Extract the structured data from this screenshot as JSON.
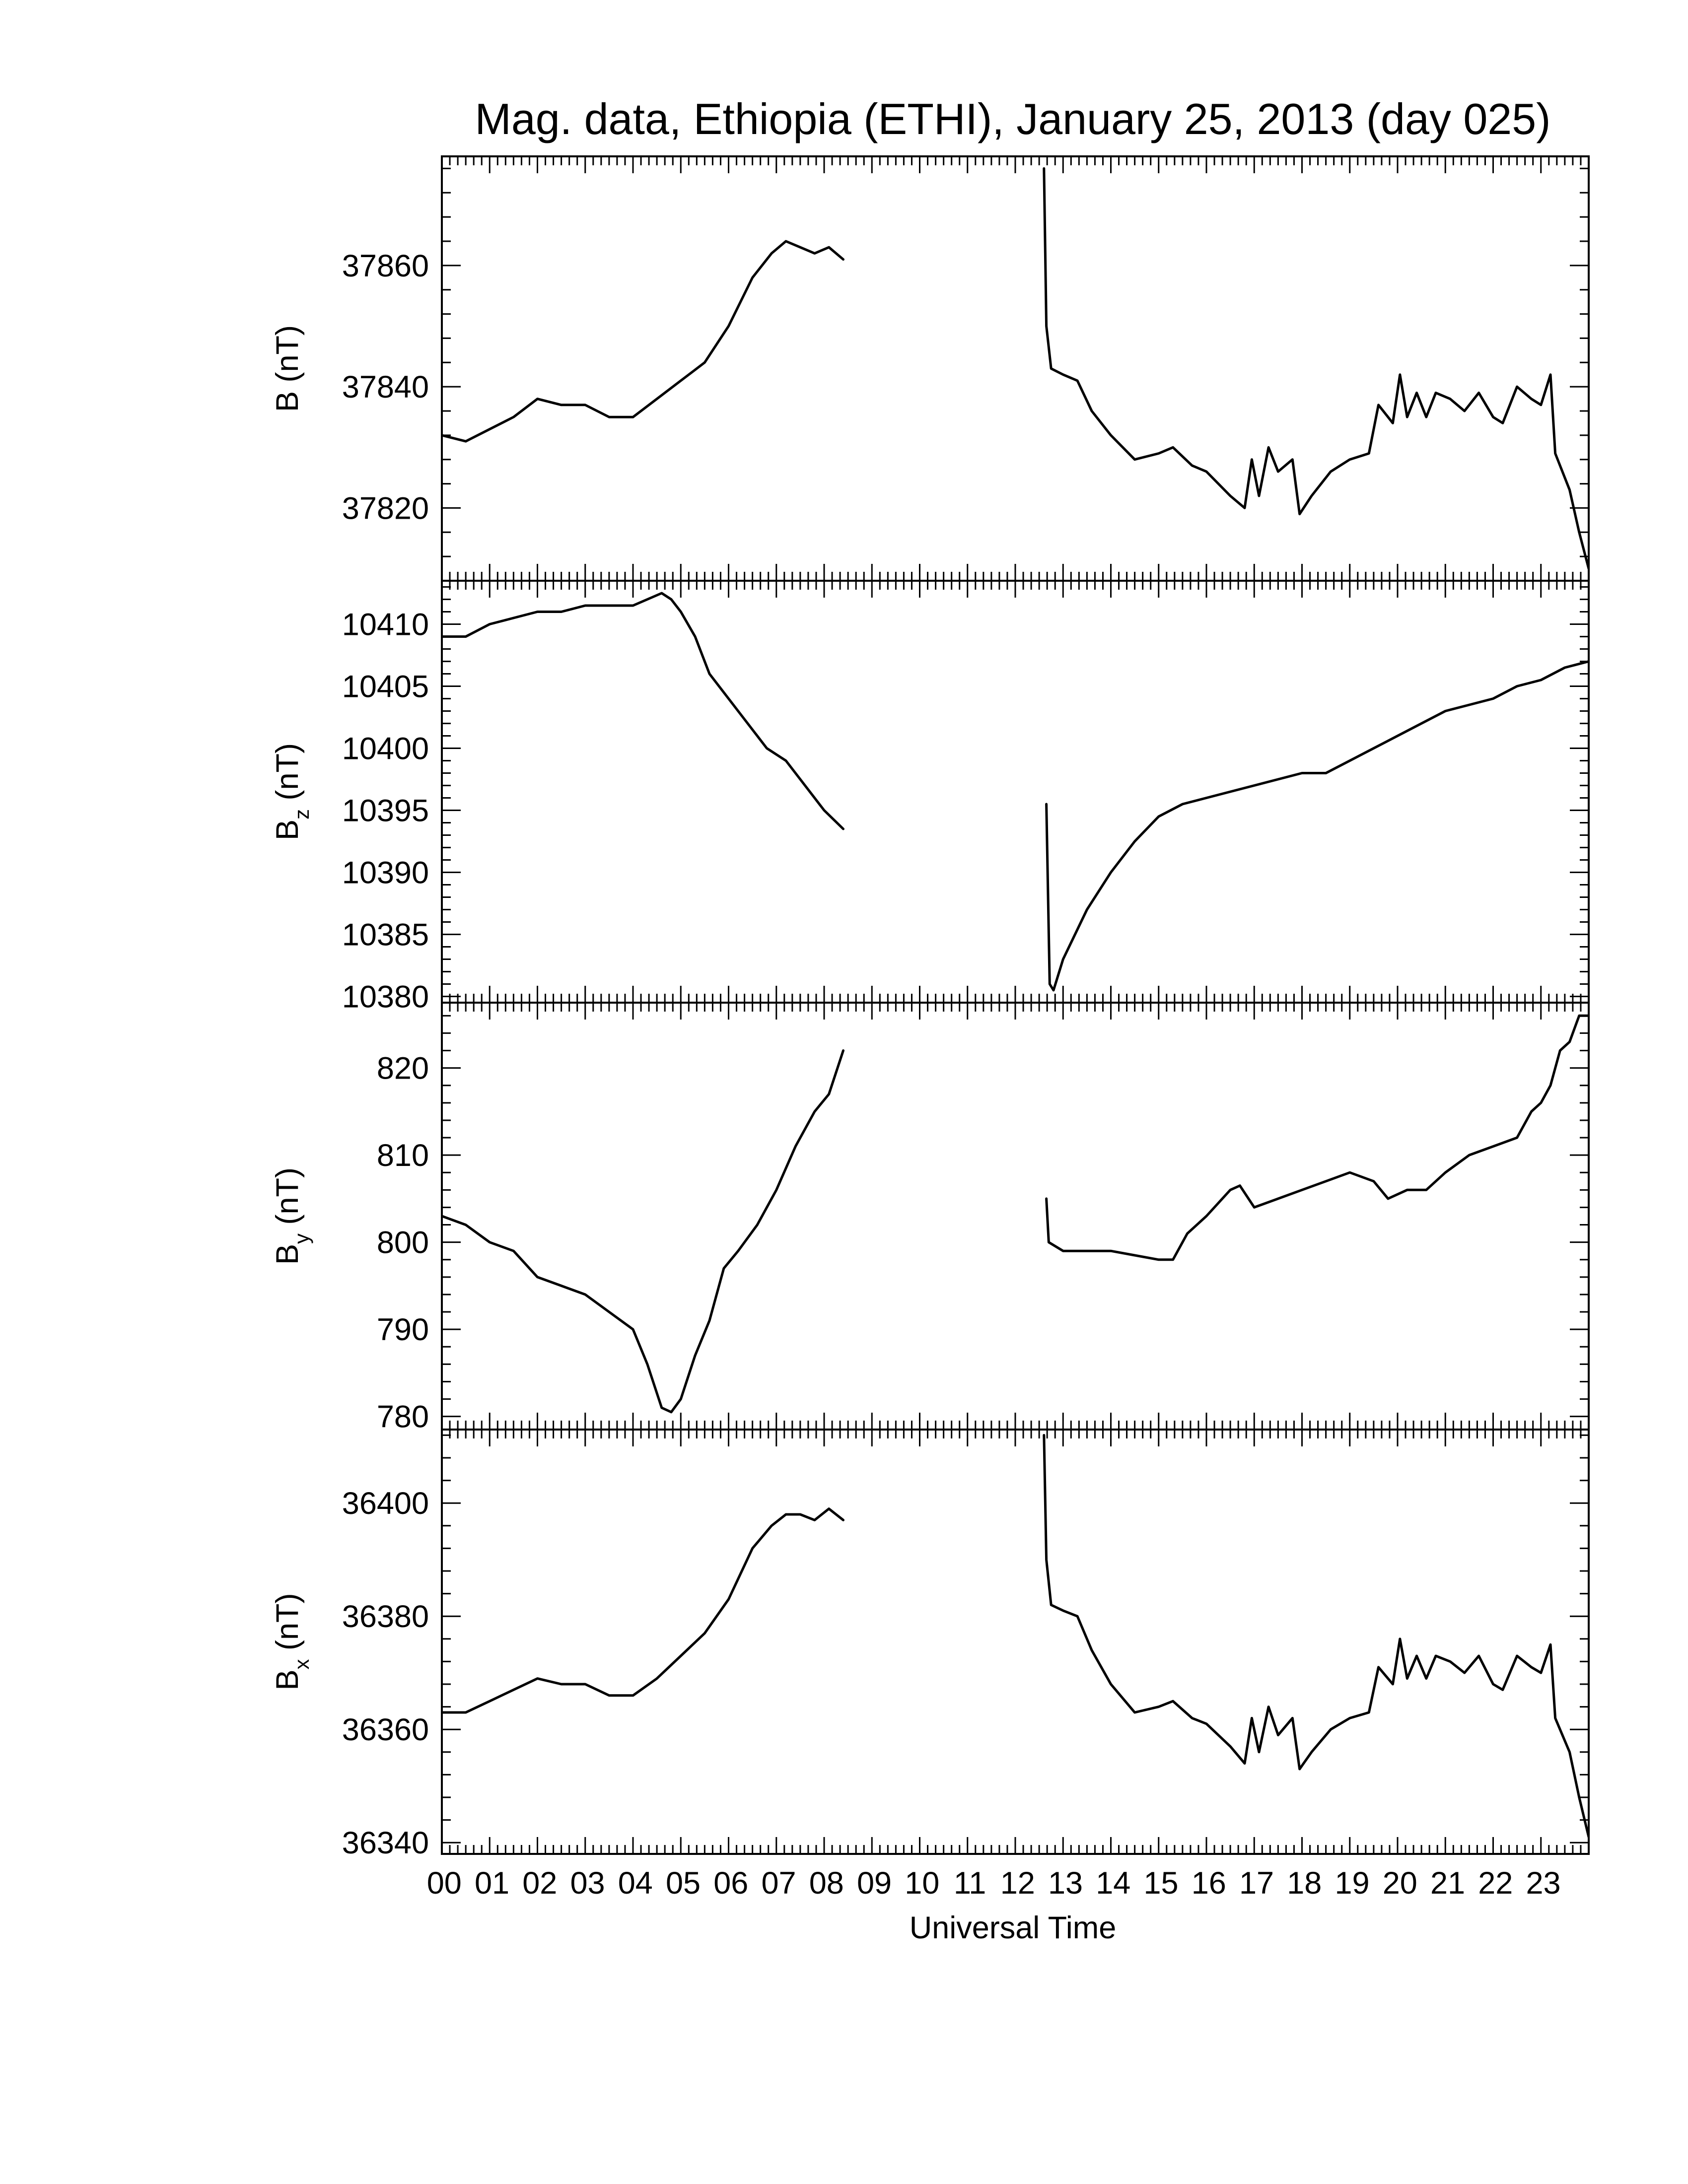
{
  "chart_data": {
    "type": "line",
    "title": "Mag. data, Ethiopia (ETHI), January 25, 2013 (day 025)",
    "xlabel": "Universal Time",
    "xlim": [
      0,
      24
    ],
    "x_tick_labels": [
      "00",
      "01",
      "02",
      "03",
      "04",
      "05",
      "06",
      "07",
      "08",
      "09",
      "10",
      "11",
      "12",
      "13",
      "14",
      "15",
      "16",
      "17",
      "18",
      "19",
      "20",
      "21",
      "22",
      "23"
    ],
    "panels": [
      {
        "ylabel": "B (nT)",
        "ylabel_base": "B",
        "ylabel_sub": "",
        "ylabel_unit": "(nT)",
        "ylim": [
          37808,
          37878
        ],
        "yticks": [
          37820,
          37840,
          37860
        ],
        "segments": [
          [
            [
              0,
              37832
            ],
            [
              0.5,
              37831
            ],
            [
              1,
              37833
            ],
            [
              1.5,
              37835
            ],
            [
              2,
              37838
            ],
            [
              2.5,
              37837
            ],
            [
              3,
              37837
            ],
            [
              3.5,
              37835
            ],
            [
              4,
              37835
            ],
            [
              4.5,
              37838
            ],
            [
              5,
              37841
            ],
            [
              5.5,
              37844
            ],
            [
              6,
              37850
            ],
            [
              6.5,
              37858
            ],
            [
              6.9,
              37862
            ],
            [
              7.2,
              37864
            ],
            [
              7.5,
              37863
            ],
            [
              7.8,
              37862
            ],
            [
              8.1,
              37863
            ],
            [
              8.4,
              37861
            ]
          ],
          [
            [
              12.6,
              37876
            ],
            [
              12.65,
              37850
            ],
            [
              12.75,
              37843
            ],
            [
              13,
              37842
            ],
            [
              13.3,
              37841
            ],
            [
              13.6,
              37836
            ],
            [
              14,
              37832
            ],
            [
              14.5,
              37828
            ],
            [
              15,
              37829
            ],
            [
              15.3,
              37830
            ],
            [
              15.7,
              37827
            ],
            [
              16,
              37826
            ],
            [
              16.5,
              37822
            ],
            [
              16.8,
              37820
            ],
            [
              16.95,
              37828
            ],
            [
              17.1,
              37822
            ],
            [
              17.3,
              37830
            ],
            [
              17.5,
              37826
            ],
            [
              17.8,
              37828
            ],
            [
              17.95,
              37819
            ],
            [
              18.2,
              37822
            ],
            [
              18.6,
              37826
            ],
            [
              19,
              37828
            ],
            [
              19.4,
              37829
            ],
            [
              19.6,
              37837
            ],
            [
              19.9,
              37834
            ],
            [
              20.05,
              37842
            ],
            [
              20.2,
              37835
            ],
            [
              20.4,
              37839
            ],
            [
              20.6,
              37835
            ],
            [
              20.8,
              37839
            ],
            [
              21.1,
              37838
            ],
            [
              21.4,
              37836
            ],
            [
              21.7,
              37839
            ],
            [
              22,
              37835
            ],
            [
              22.2,
              37834
            ],
            [
              22.5,
              37840
            ],
            [
              22.8,
              37838
            ],
            [
              23,
              37837
            ],
            [
              23.2,
              37842
            ],
            [
              23.3,
              37829
            ],
            [
              23.6,
              37823
            ],
            [
              23.8,
              37816
            ],
            [
              24,
              37810
            ]
          ]
        ]
      },
      {
        "ylabel": "Bz (nT)",
        "ylabel_base": "B",
        "ylabel_sub": "z",
        "ylabel_unit": "(nT)",
        "ylim": [
          10379.5,
          10413.5
        ],
        "yticks": [
          10380,
          10385,
          10390,
          10395,
          10400,
          10405,
          10410
        ],
        "segments": [
          [
            [
              0,
              10409
            ],
            [
              0.5,
              10409
            ],
            [
              1,
              10410
            ],
            [
              1.5,
              10410.5
            ],
            [
              2,
              10411
            ],
            [
              2.5,
              10411
            ],
            [
              3,
              10411.5
            ],
            [
              3.5,
              10411.5
            ],
            [
              4,
              10411.5
            ],
            [
              4.3,
              10412
            ],
            [
              4.6,
              10412.5
            ],
            [
              4.8,
              10412
            ],
            [
              5,
              10411
            ],
            [
              5.3,
              10409
            ],
            [
              5.6,
              10406
            ],
            [
              6,
              10404
            ],
            [
              6.4,
              10402
            ],
            [
              6.8,
              10400
            ],
            [
              7.2,
              10399
            ],
            [
              7.6,
              10397
            ],
            [
              8,
              10395
            ],
            [
              8.4,
              10393.5
            ]
          ],
          [
            [
              12.65,
              10395.5
            ],
            [
              12.72,
              10381
            ],
            [
              12.8,
              10380.5
            ],
            [
              13,
              10383
            ],
            [
              13.5,
              10387
            ],
            [
              14,
              10390
            ],
            [
              14.5,
              10392.5
            ],
            [
              15,
              10394.5
            ],
            [
              15.5,
              10395.5
            ],
            [
              16,
              10396
            ],
            [
              16.5,
              10396.5
            ],
            [
              17,
              10397
            ],
            [
              17.5,
              10397.5
            ],
            [
              18,
              10398
            ],
            [
              18.5,
              10398
            ],
            [
              19,
              10399
            ],
            [
              19.5,
              10400
            ],
            [
              20,
              10401
            ],
            [
              20.5,
              10402
            ],
            [
              21,
              10403
            ],
            [
              21.5,
              10403.5
            ],
            [
              22,
              10404
            ],
            [
              22.5,
              10405
            ],
            [
              23,
              10405.5
            ],
            [
              23.5,
              10406.5
            ],
            [
              24,
              10407
            ]
          ]
        ]
      },
      {
        "ylabel": "By (nT)",
        "ylabel_base": "B",
        "ylabel_sub": "y",
        "ylabel_unit": "(nT)",
        "ylim": [
          778.5,
          827.5
        ],
        "yticks": [
          780,
          790,
          800,
          810,
          820
        ],
        "segments": [
          [
            [
              0,
              803
            ],
            [
              0.5,
              802
            ],
            [
              1,
              800
            ],
            [
              1.5,
              799
            ],
            [
              2,
              796
            ],
            [
              2.5,
              795
            ],
            [
              3,
              794
            ],
            [
              3.5,
              792
            ],
            [
              4,
              790
            ],
            [
              4.3,
              786
            ],
            [
              4.6,
              781
            ],
            [
              4.8,
              780.5
            ],
            [
              5,
              782
            ],
            [
              5.3,
              787
            ],
            [
              5.6,
              791
            ],
            [
              5.9,
              797
            ],
            [
              6.2,
              799
            ],
            [
              6.6,
              802
            ],
            [
              7,
              806
            ],
            [
              7.4,
              811
            ],
            [
              7.8,
              815
            ],
            [
              8.1,
              817
            ],
            [
              8.4,
              822
            ]
          ],
          [
            [
              12.65,
              805
            ],
            [
              12.7,
              800
            ],
            [
              13,
              799
            ],
            [
              13.5,
              799
            ],
            [
              14,
              799
            ],
            [
              14.5,
              798.5
            ],
            [
              15,
              798
            ],
            [
              15.3,
              798
            ],
            [
              15.6,
              801
            ],
            [
              16,
              803
            ],
            [
              16.5,
              806
            ],
            [
              16.7,
              806.5
            ],
            [
              17,
              804
            ],
            [
              17.5,
              805
            ],
            [
              18,
              806
            ],
            [
              18.5,
              807
            ],
            [
              19,
              808
            ],
            [
              19.5,
              807
            ],
            [
              19.8,
              805
            ],
            [
              20.2,
              806
            ],
            [
              20.6,
              806
            ],
            [
              21,
              808
            ],
            [
              21.5,
              810
            ],
            [
              22,
              811
            ],
            [
              22.5,
              812
            ],
            [
              22.8,
              815
            ],
            [
              23,
              816
            ],
            [
              23.2,
              818
            ],
            [
              23.4,
              822
            ],
            [
              23.6,
              823
            ],
            [
              23.8,
              826
            ],
            [
              24,
              826
            ]
          ]
        ]
      },
      {
        "ylabel": "Bx (nT)",
        "ylabel_base": "B",
        "ylabel_sub": "x",
        "ylabel_unit": "(nT)",
        "ylim": [
          36338,
          36413
        ],
        "yticks": [
          36340,
          36360,
          36380,
          36400
        ],
        "segments": [
          [
            [
              0,
              36363
            ],
            [
              0.5,
              36363
            ],
            [
              1,
              36365
            ],
            [
              1.5,
              36367
            ],
            [
              2,
              36369
            ],
            [
              2.5,
              36368
            ],
            [
              3,
              36368
            ],
            [
              3.5,
              36366
            ],
            [
              4,
              36366
            ],
            [
              4.5,
              36369
            ],
            [
              5,
              36373
            ],
            [
              5.5,
              36377
            ],
            [
              6,
              36383
            ],
            [
              6.5,
              36392
            ],
            [
              6.9,
              36396
            ],
            [
              7.2,
              36398
            ],
            [
              7.5,
              36398
            ],
            [
              7.8,
              36397
            ],
            [
              8.1,
              36399
            ],
            [
              8.4,
              36397
            ]
          ],
          [
            [
              12.6,
              36412
            ],
            [
              12.65,
              36390
            ],
            [
              12.75,
              36382
            ],
            [
              13,
              36381
            ],
            [
              13.3,
              36380
            ],
            [
              13.6,
              36374
            ],
            [
              14,
              36368
            ],
            [
              14.5,
              36363
            ],
            [
              15,
              36364
            ],
            [
              15.3,
              36365
            ],
            [
              15.7,
              36362
            ],
            [
              16,
              36361
            ],
            [
              16.5,
              36357
            ],
            [
              16.8,
              36354
            ],
            [
              16.95,
              36362
            ],
            [
              17.1,
              36356
            ],
            [
              17.3,
              36364
            ],
            [
              17.5,
              36359
            ],
            [
              17.8,
              36362
            ],
            [
              17.95,
              36353
            ],
            [
              18.2,
              36356
            ],
            [
              18.6,
              36360
            ],
            [
              19,
              36362
            ],
            [
              19.4,
              36363
            ],
            [
              19.6,
              36371
            ],
            [
              19.9,
              36368
            ],
            [
              20.05,
              36376
            ],
            [
              20.2,
              36369
            ],
            [
              20.4,
              36373
            ],
            [
              20.6,
              36369
            ],
            [
              20.8,
              36373
            ],
            [
              21.1,
              36372
            ],
            [
              21.4,
              36370
            ],
            [
              21.7,
              36373
            ],
            [
              22,
              36368
            ],
            [
              22.2,
              36367
            ],
            [
              22.5,
              36373
            ],
            [
              22.8,
              36371
            ],
            [
              23,
              36370
            ],
            [
              23.2,
              36375
            ],
            [
              23.3,
              36362
            ],
            [
              23.6,
              36356
            ],
            [
              23.8,
              36348
            ],
            [
              24,
              36341
            ]
          ]
        ]
      }
    ]
  }
}
